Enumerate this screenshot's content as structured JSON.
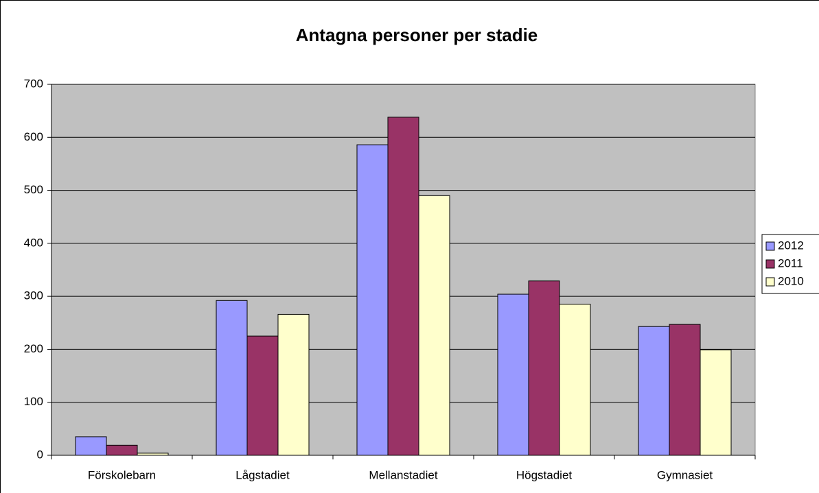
{
  "chart_data": {
    "type": "bar",
    "title": "Antagna personer per stadie",
    "categories": [
      "Förskolebarn",
      "Lågstadiet",
      "Mellanstadiet",
      "Högstadiet",
      "Gymnasiet"
    ],
    "series": [
      {
        "name": "2012",
        "color": "#9999ff",
        "values": [
          35,
          292,
          586,
          304,
          243
        ]
      },
      {
        "name": "2011",
        "color": "#993366",
        "values": [
          19,
          225,
          638,
          329,
          247
        ]
      },
      {
        "name": "2010",
        "color": "#ffffcc",
        "values": [
          4,
          266,
          490,
          285,
          199
        ]
      }
    ],
    "ylim": [
      0,
      700
    ],
    "yticks": [
      0,
      100,
      200,
      300,
      400,
      500,
      600,
      700
    ],
    "grid": true,
    "legend": "right"
  }
}
